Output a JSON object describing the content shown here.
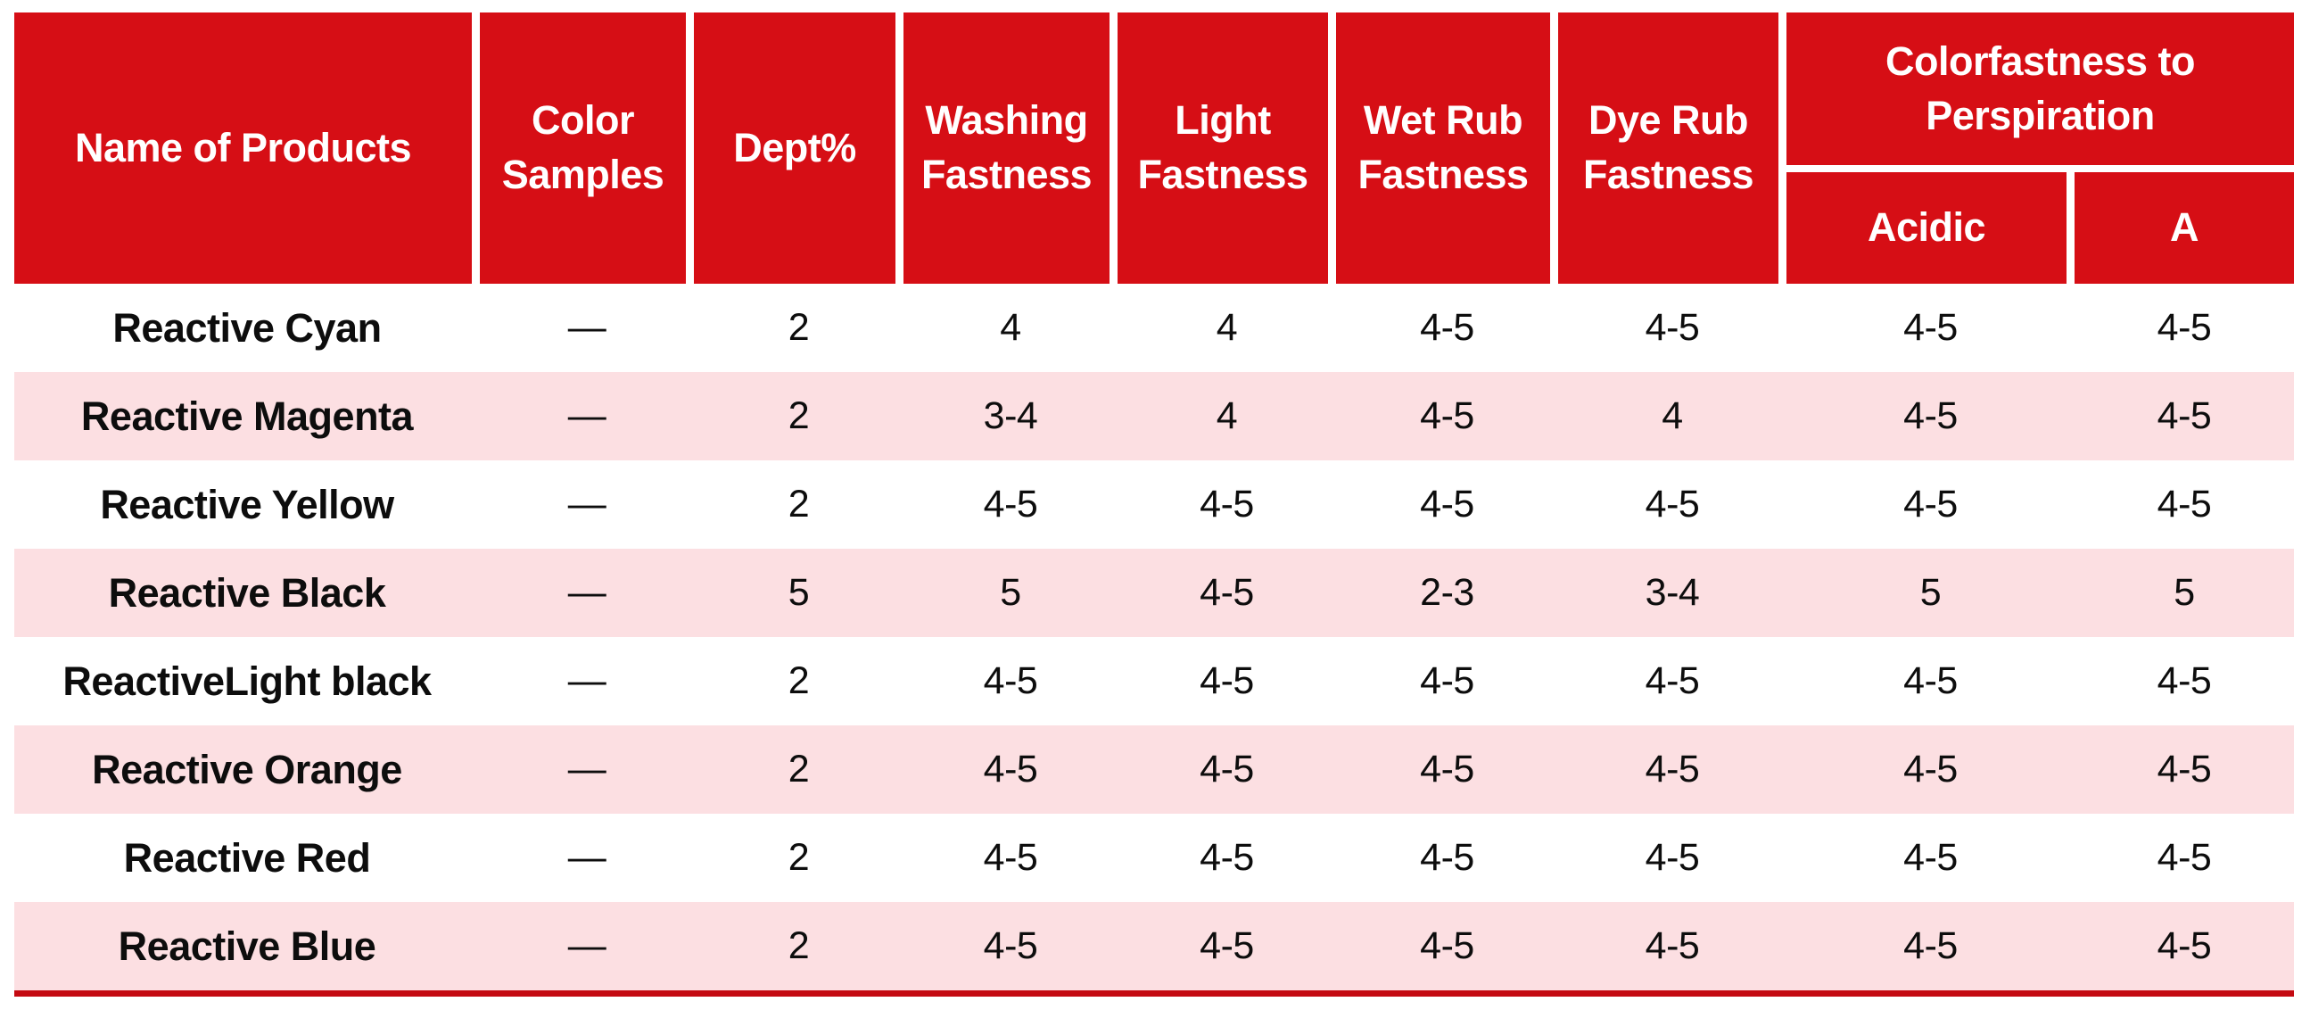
{
  "page": {
    "background": "#ffffff"
  },
  "table": {
    "colors": {
      "header_bg": "#d60e15",
      "header_text": "#ffffff",
      "row_bg": "#ffffff",
      "row_alt_bg": "#fcdfe2",
      "body_text": "#0d0d0d",
      "bottom_border": "#c40a11"
    },
    "headers": [
      "Name of Products",
      "Color Samples",
      "Dept%",
      "Washing Fastness",
      "Light Fastness",
      "Wet Rub Fastness",
      "Dye Rub Fastness"
    ],
    "group_header": {
      "label": "Colorfastness to Perspiration",
      "sub_columns": [
        "Acidic",
        "A"
      ]
    },
    "rows": [
      {
        "name": "Reactive Cyan",
        "values": [
          "—",
          "2",
          "4",
          "4",
          "4-5",
          "4-5",
          "4-5",
          "4-5"
        ]
      },
      {
        "name": "Reactive Magenta",
        "values": [
          "—",
          "2",
          "3-4",
          "4",
          "4-5",
          "4",
          "4-5",
          "4-5"
        ]
      },
      {
        "name": "Reactive Yellow",
        "values": [
          "—",
          "2",
          "4-5",
          "4-5",
          "4-5",
          "4-5",
          "4-5",
          "4-5"
        ]
      },
      {
        "name": "Reactive Black",
        "values": [
          "—",
          "5",
          "5",
          "4-5",
          "2-3",
          "3-4",
          "5",
          "5"
        ]
      },
      {
        "name": "ReactiveLight black",
        "values": [
          "—",
          "2",
          "4-5",
          "4-5",
          "4-5",
          "4-5",
          "4-5",
          "4-5"
        ]
      },
      {
        "name": "Reactive Orange",
        "values": [
          "—",
          "2",
          "4-5",
          "4-5",
          "4-5",
          "4-5",
          "4-5",
          "4-5"
        ]
      },
      {
        "name": "Reactive Red",
        "values": [
          "—",
          "2",
          "4-5",
          "4-5",
          "4-5",
          "4-5",
          "4-5",
          "4-5"
        ]
      },
      {
        "name": "Reactive Blue",
        "values": [
          "—",
          "2",
          "4-5",
          "4-5",
          "4-5",
          "4-5",
          "4-5",
          "4-5"
        ]
      }
    ]
  }
}
